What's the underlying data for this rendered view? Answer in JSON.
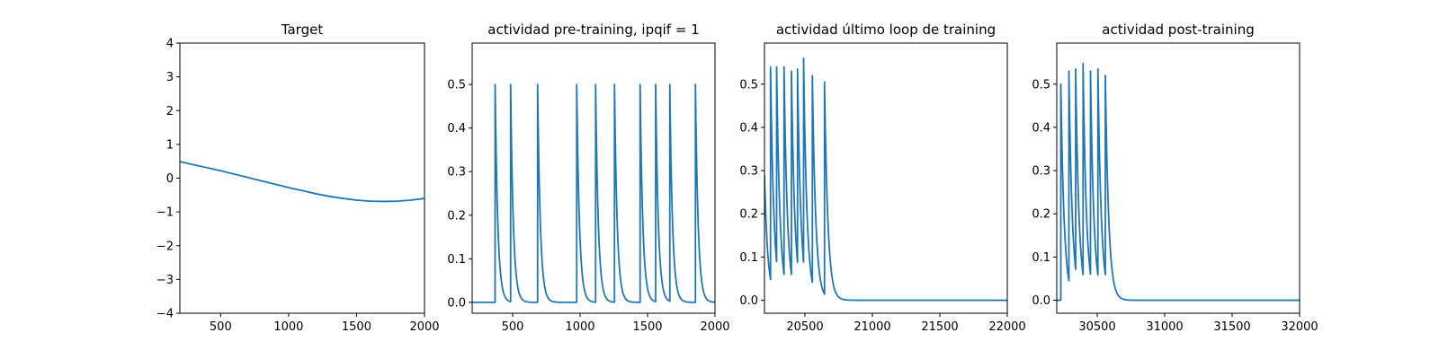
{
  "chart_data": [
    {
      "type": "line",
      "title": "Target",
      "xlabel": "",
      "ylabel": "",
      "xlim": [
        200,
        2000
      ],
      "ylim": [
        -4,
        4
      ],
      "xticks": [
        500,
        1000,
        1500,
        2000
      ],
      "yticks": [
        -4,
        -3,
        -2,
        -1,
        0,
        1,
        2,
        3,
        4
      ],
      "grid": false,
      "color": "#1f77b4",
      "series": [
        {
          "x": [
            200,
            300,
            400,
            500,
            600,
            700,
            800,
            900,
            1000,
            1100,
            1200,
            1300,
            1400,
            1500,
            1600,
            1700,
            1800,
            1900,
            2000
          ],
          "y": [
            0.49,
            0.4,
            0.31,
            0.22,
            0.12,
            0.02,
            -0.08,
            -0.18,
            -0.28,
            -0.37,
            -0.46,
            -0.54,
            -0.6,
            -0.65,
            -0.68,
            -0.69,
            -0.68,
            -0.65,
            -0.6
          ]
        }
      ]
    },
    {
      "type": "line",
      "title": "actividad pre-training, ipqif = 1",
      "xlabel": "",
      "ylabel": "",
      "xlim": [
        200,
        2000
      ],
      "ylim": [
        -0.025,
        0.595
      ],
      "xticks": [
        500,
        1000,
        1500,
        2000
      ],
      "yticks": [
        0.0,
        0.1,
        0.2,
        0.3,
        0.4,
        0.5
      ],
      "ytick_decimals": 1,
      "grid": false,
      "color": "#1f77b4",
      "spikes": {
        "baseline": 0.0,
        "peak": 0.5,
        "times": [
          370,
          485,
          685,
          975,
          1115,
          1255,
          1445,
          1560,
          1665,
          1855
        ],
        "decay": 20
      }
    },
    {
      "type": "line",
      "title": "actividad último loop de training",
      "xlabel": "",
      "ylabel": "",
      "xlim": [
        20200,
        22000
      ],
      "ylim": [
        -0.03,
        0.595
      ],
      "xticks": [
        20500,
        21000,
        21500,
        22000
      ],
      "yticks": [
        0.0,
        0.1,
        0.2,
        0.3,
        0.4,
        0.5
      ],
      "ytick_decimals": 1,
      "grid": false,
      "color": "#1f77b4",
      "spikes": {
        "baseline": 0.0,
        "start": 0.29,
        "times": [
          20245,
          20290,
          20345,
          20400,
          20445,
          20490,
          20555,
          20645
        ],
        "peaks": [
          0.54,
          0.54,
          0.54,
          0.53,
          0.535,
          0.56,
          0.52,
          0.505
        ],
        "decay": 25
      }
    },
    {
      "type": "line",
      "title": "actividad post-training",
      "xlabel": "",
      "ylabel": "",
      "xlim": [
        30200,
        32000
      ],
      "ylim": [
        -0.03,
        0.595
      ],
      "xticks": [
        30500,
        31000,
        31500,
        32000
      ],
      "yticks": [
        0.0,
        0.1,
        0.2,
        0.3,
        0.4,
        0.5
      ],
      "ytick_decimals": 1,
      "grid": false,
      "color": "#1f77b4",
      "spikes": {
        "baseline": 0.0,
        "start": 0.0,
        "times": [
          30230,
          30290,
          30340,
          30395,
          30450,
          30505,
          30560
        ],
        "peaks": [
          0.5,
          0.53,
          0.535,
          0.548,
          0.53,
          0.535,
          0.52
        ],
        "decay": 25
      }
    }
  ]
}
